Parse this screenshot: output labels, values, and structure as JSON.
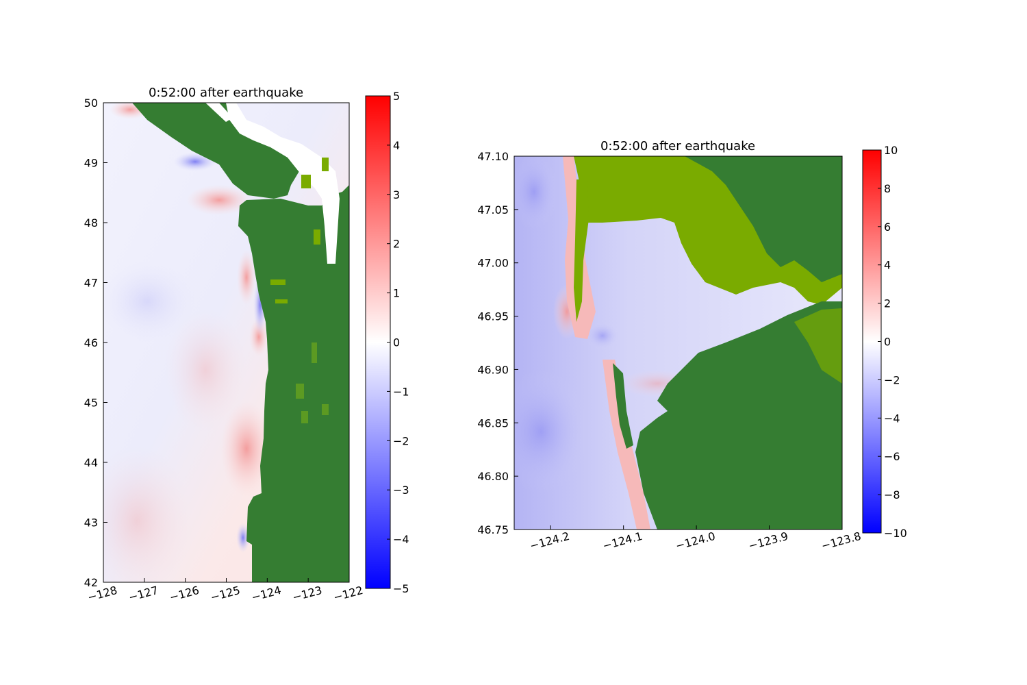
{
  "chart_data": [
    {
      "type": "heatmap",
      "title": "0:52:00 after earthquake",
      "xlabel": "",
      "ylabel": "",
      "xlim": [
        -128,
        -122
      ],
      "ylim": [
        42,
        50
      ],
      "x_ticks": [
        -128,
        -127,
        -126,
        -125,
        -124,
        -123,
        -122
      ],
      "x_tick_labels": [
        "−128",
        "−127",
        "−126",
        "−125",
        "−124",
        "−123",
        "−122"
      ],
      "y_ticks": [
        42,
        43,
        44,
        45,
        46,
        47,
        48,
        49,
        50
      ],
      "y_tick_labels": [
        "42",
        "43",
        "44",
        "45",
        "46",
        "47",
        "48",
        "49",
        "50"
      ],
      "colorbar": {
        "range": [
          -5,
          5
        ],
        "ticks": [
          -5,
          -4,
          -3,
          -2,
          -1,
          0,
          1,
          2,
          3,
          4,
          5
        ],
        "tick_labels": [
          "−5",
          "−4",
          "−3",
          "−2",
          "−1",
          "0",
          "1",
          "2",
          "3",
          "4",
          "5"
        ],
        "colormap": [
          "#0000ff",
          "#ffffff",
          "#ff0000"
        ]
      },
      "land_colors": [
        "#357d32",
        "#5c9a22",
        "#7aab00"
      ],
      "dry_color": "#ffffff"
    },
    {
      "type": "heatmap",
      "title": "0:52:00 after earthquake",
      "xlabel": "",
      "ylabel": "",
      "xlim": [
        -124.25,
        -123.8
      ],
      "ylim": [
        46.75,
        47.1
      ],
      "x_ticks": [
        -124.2,
        -124.1,
        -124.0,
        -123.9,
        -123.8
      ],
      "x_tick_labels": [
        "−124.2",
        "−124.1",
        "−124.0",
        "−123.9",
        "−123.8"
      ],
      "y_ticks": [
        46.75,
        46.8,
        46.85,
        46.9,
        46.95,
        47.0,
        47.05,
        47.1
      ],
      "y_tick_labels": [
        "46.75",
        "46.80",
        "46.85",
        "46.90",
        "46.95",
        "47.00",
        "47.05",
        "47.10"
      ],
      "colorbar": {
        "range": [
          -10,
          10
        ],
        "ticks": [
          -10,
          -8,
          -6,
          -4,
          -2,
          0,
          2,
          4,
          6,
          8,
          10
        ],
        "tick_labels": [
          "−10",
          "−8",
          "−6",
          "−4",
          "−2",
          "0",
          "2",
          "4",
          "6",
          "8",
          "10"
        ],
        "colormap": [
          "#0000ff",
          "#ffffff",
          "#ff0000"
        ]
      },
      "land_colors": [
        "#357d32",
        "#5c9a22",
        "#7aab00"
      ]
    }
  ]
}
